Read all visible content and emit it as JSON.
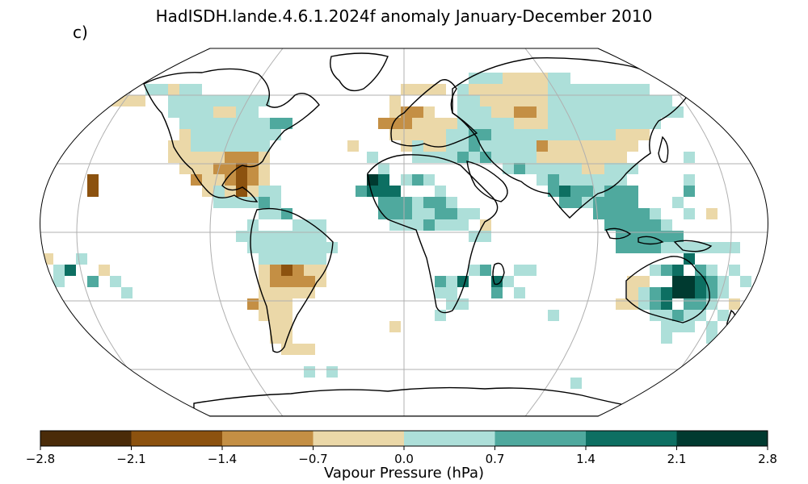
{
  "title": "HadISDH.lande.4.6.1.2024f anomaly January-December 2010",
  "panel_label": "c)",
  "colorbar": {
    "label": "Vapour Pressure (hPa)",
    "ticks": [
      "−2.8",
      "−2.1",
      "−1.4",
      "−0.7",
      "0.0",
      "0.7",
      "1.4",
      "2.1",
      "2.8"
    ],
    "colors": [
      "#4a2b09",
      "#8c520f",
      "#c48f44",
      "#ebd8a8",
      "#addfd9",
      "#4fa99e",
      "#0d6f62",
      "#003a30"
    ]
  },
  "projection": "Robinson",
  "coastline_color": "#000000",
  "graticule_color": "#b0b0b0"
}
